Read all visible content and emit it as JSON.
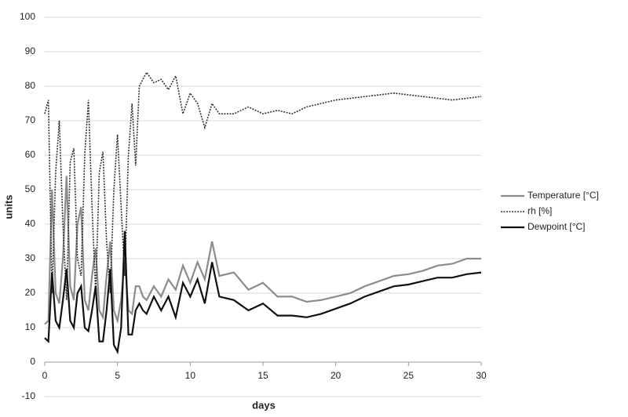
{
  "chart_data": {
    "type": "line",
    "xlabel": "days",
    "ylabel": "units",
    "x": [
      0,
      0.25,
      0.5,
      0.75,
      1,
      1.25,
      1.5,
      1.75,
      2,
      2.25,
      2.5,
      2.75,
      3,
      3.25,
      3.5,
      3.75,
      4,
      4.25,
      4.5,
      4.75,
      5,
      5.25,
      5.5,
      5.75,
      6,
      6.25,
      6.5,
      6.75,
      7,
      7.5,
      8,
      8.5,
      9,
      9.5,
      10,
      10.5,
      11,
      11.5,
      12,
      13,
      14,
      15,
      16,
      17,
      18,
      19,
      20,
      21,
      22,
      23,
      24,
      25,
      26,
      27,
      28,
      29,
      30
    ],
    "series": [
      {
        "name": "Temperature [°C]",
        "color": "#8c8c8c",
        "dash": "solid",
        "values": [
          11,
          12,
          50,
          20,
          17,
          30,
          54,
          22,
          18,
          40,
          45,
          18,
          15,
          25,
          33,
          15,
          13,
          25,
          35,
          15,
          12,
          18,
          30,
          15,
          14,
          22,
          22,
          19,
          18,
          22,
          19,
          24,
          21,
          28,
          23,
          29,
          24,
          35,
          25,
          26,
          21,
          23,
          19,
          19,
          17.5,
          18,
          19,
          20,
          22,
          23.5,
          25,
          25.5,
          26.5,
          28,
          28.5,
          30,
          30
        ]
      },
      {
        "name": "rh [%]",
        "color": "#333333",
        "dash": "dotted",
        "values": [
          72,
          76,
          20,
          55,
          70,
          40,
          18,
          58,
          62,
          30,
          25,
          60,
          76,
          45,
          20,
          55,
          61,
          35,
          20,
          50,
          66,
          45,
          25,
          60,
          75,
          57,
          80,
          82,
          84,
          81,
          82,
          79,
          83,
          72,
          78,
          75,
          68,
          75,
          72,
          72,
          74,
          72,
          73,
          72,
          74,
          75,
          76,
          76.5,
          77,
          77.5,
          78,
          77.5,
          77,
          76.5,
          76,
          76.5,
          77
        ]
      },
      {
        "name": "Dewpoint [°C]",
        "color": "#111111",
        "dash": "solid",
        "values": [
          7,
          6,
          26,
          12,
          10,
          18,
          27,
          12,
          10,
          20,
          22,
          10,
          9,
          15,
          22,
          6,
          6,
          15,
          27,
          5,
          3,
          10,
          38,
          8,
          8,
          15,
          17,
          15,
          14,
          19,
          15,
          19,
          13,
          23,
          19,
          24,
          17,
          29,
          19,
          18,
          15,
          17,
          13.5,
          13.5,
          13,
          14,
          15.5,
          17,
          19,
          20.5,
          22,
          22.5,
          23.5,
          24.5,
          24.5,
          25.5,
          26
        ]
      }
    ],
    "xlim": [
      0,
      30
    ],
    "xticks": [
      0,
      5,
      10,
      15,
      20,
      25,
      30
    ],
    "ylim": [
      -10,
      100
    ],
    "yticks": [
      -10,
      0,
      10,
      20,
      30,
      40,
      50,
      60,
      70,
      80,
      90,
      100
    ],
    "grid": true,
    "legend": "right"
  }
}
